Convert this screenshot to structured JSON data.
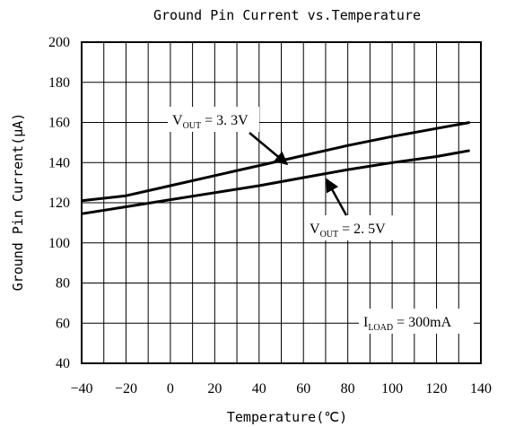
{
  "chart_data": {
    "type": "line",
    "title": "Ground Pin Current vs.Temperature",
    "xlabel": "Temperature(℃)",
    "ylabel": "Ground Pin Current(μA)",
    "xlim": [
      -40,
      140
    ],
    "ylim": [
      40,
      200
    ],
    "xticks": [
      -40,
      -20,
      0,
      20,
      40,
      60,
      80,
      100,
      120,
      140
    ],
    "yticks": [
      40,
      60,
      80,
      100,
      120,
      140,
      160,
      180,
      200
    ],
    "x_tick_labels": [
      "−40",
      "−20",
      "0",
      "20",
      "40",
      "60",
      "80",
      "100",
      "120",
      "140"
    ],
    "y_tick_labels": [
      "40",
      "60",
      "80",
      "100",
      "120",
      "140",
      "160",
      "180",
      "200"
    ],
    "grid": true,
    "series": [
      {
        "name": "V_OUT = 3.3V",
        "x": [
          -40,
          -20,
          0,
          20,
          40,
          60,
          80,
          100,
          120,
          135
        ],
        "y": [
          121,
          123.5,
          128.5,
          133.5,
          138.5,
          143.5,
          148.5,
          153,
          157,
          160
        ]
      },
      {
        "name": "V_OUT = 2.5V",
        "x": [
          -40,
          -20,
          0,
          20,
          40,
          60,
          80,
          100,
          120,
          135
        ],
        "y": [
          114.5,
          118,
          121.5,
          125,
          128.5,
          132.5,
          136.5,
          140,
          143,
          146
        ]
      }
    ],
    "annotations": [
      {
        "id": "vout33",
        "main": "V",
        "sub": "OUT",
        "tail": " = 3. 3V"
      },
      {
        "id": "vout25",
        "main": "V",
        "sub": "OUT",
        "tail": " = 2. 5V"
      },
      {
        "id": "iload",
        "main": "I",
        "sub": "LOAD",
        "tail": " = 300mA"
      }
    ]
  }
}
